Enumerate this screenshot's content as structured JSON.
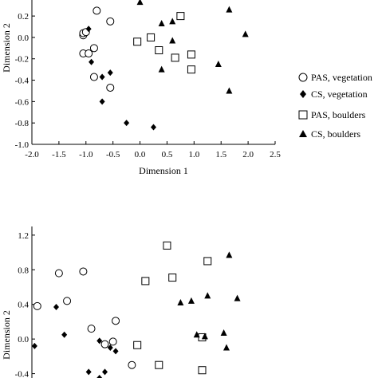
{
  "chart_data": [
    {
      "type": "scatter",
      "xlabel": "Dimension 1",
      "ylabel": "Dimension 2",
      "xlim": [
        -2.0,
        2.5
      ],
      "ylim": [
        -1.0,
        0.35
      ],
      "xticks": [
        "-2.0",
        "-1.5",
        "-1.0",
        "-0.5",
        "0.0",
        "0.5",
        "1.0",
        "1.5",
        "2.0",
        "2.5"
      ],
      "yticks": [
        "-1.0",
        "-0.8",
        "-0.6",
        "-0.4",
        "-0.2",
        "0.0",
        "0.2"
      ],
      "ytick_values": [
        -1.0,
        -0.8,
        -0.6,
        -0.4,
        -0.2,
        0.0,
        0.2
      ],
      "grid": false,
      "legend_position": "right",
      "series": [
        {
          "name": "PAS, vegetation",
          "marker": "open-circle",
          "points": [
            [
              -0.8,
              0.25
            ],
            [
              -0.55,
              0.15
            ],
            [
              -1.05,
              0.02
            ],
            [
              -1.05,
              0.04
            ],
            [
              -1.0,
              0.05
            ],
            [
              -0.85,
              -0.1
            ],
            [
              -1.05,
              -0.15
            ],
            [
              -0.95,
              -0.15
            ],
            [
              -0.85,
              -0.37
            ],
            [
              -0.55,
              -0.47
            ]
          ]
        },
        {
          "name": "CS, vegetation",
          "marker": "filled-diamond",
          "points": [
            [
              -0.95,
              0.08
            ],
            [
              -0.9,
              -0.23
            ],
            [
              -0.55,
              -0.33
            ],
            [
              -0.7,
              -0.37
            ],
            [
              -0.7,
              -0.6
            ],
            [
              -0.25,
              -0.8
            ],
            [
              0.25,
              -0.84
            ]
          ]
        },
        {
          "name": "PAS, boulders",
          "marker": "open-square",
          "points": [
            [
              0.75,
              0.2
            ],
            [
              -0.05,
              -0.04
            ],
            [
              0.2,
              0.0
            ],
            [
              0.35,
              -0.12
            ],
            [
              0.65,
              -0.19
            ],
            [
              0.95,
              -0.16
            ],
            [
              0.95,
              -0.3
            ]
          ]
        },
        {
          "name": "CS, boulders",
          "marker": "filled-triangle",
          "points": [
            [
              0.0,
              0.33
            ],
            [
              1.65,
              0.26
            ],
            [
              0.4,
              0.13
            ],
            [
              0.6,
              0.15
            ],
            [
              0.6,
              -0.03
            ],
            [
              1.95,
              0.03
            ],
            [
              1.45,
              -0.25
            ],
            [
              0.4,
              -0.3
            ],
            [
              1.65,
              -0.5
            ]
          ]
        }
      ]
    },
    {
      "type": "scatter",
      "xlabel": "",
      "ylabel": "Dimension 2",
      "xlim": [
        -2.0,
        2.5
      ],
      "ylim": [
        -0.45,
        1.3
      ],
      "xticks": [],
      "yticks": [
        "-0.4",
        "0.0",
        "0.4",
        "0.8",
        "1.2"
      ],
      "ytick_values": [
        -0.4,
        0.0,
        0.4,
        0.8,
        1.2
      ],
      "grid": false,
      "series": [
        {
          "name": "PAS, vegetation",
          "marker": "open-circle",
          "points": [
            [
              -1.9,
              0.38
            ],
            [
              -1.5,
              0.76
            ],
            [
              -1.05,
              0.78
            ],
            [
              -1.35,
              0.44
            ],
            [
              -0.9,
              0.12
            ],
            [
              -0.45,
              0.21
            ],
            [
              -0.65,
              -0.06
            ],
            [
              -0.5,
              -0.03
            ],
            [
              -0.15,
              -0.3
            ]
          ]
        },
        {
          "name": "CS, vegetation",
          "marker": "filled-diamond",
          "points": [
            [
              -1.55,
              0.37
            ],
            [
              -1.4,
              0.05
            ],
            [
              -1.95,
              -0.08
            ],
            [
              -0.75,
              -0.02
            ],
            [
              -0.55,
              -0.1
            ],
            [
              -0.45,
              -0.14
            ],
            [
              -0.95,
              -0.38
            ],
            [
              -0.65,
              -0.38
            ],
            [
              -0.75,
              -0.45
            ]
          ]
        },
        {
          "name": "PAS, boulders",
          "marker": "open-square",
          "points": [
            [
              0.5,
              1.08
            ],
            [
              0.1,
              0.67
            ],
            [
              0.6,
              0.71
            ],
            [
              1.25,
              0.9
            ],
            [
              -0.05,
              -0.07
            ],
            [
              1.15,
              0.02
            ],
            [
              0.35,
              -0.3
            ],
            [
              1.15,
              -0.36
            ]
          ]
        },
        {
          "name": "CS, boulders",
          "marker": "filled-triangle",
          "points": [
            [
              1.65,
              0.97
            ],
            [
              1.8,
              0.47
            ],
            [
              1.25,
              0.5
            ],
            [
              0.75,
              0.42
            ],
            [
              0.95,
              0.44
            ],
            [
              1.55,
              0.07
            ],
            [
              1.05,
              0.05
            ],
            [
              1.2,
              0.03
            ],
            [
              1.6,
              -0.1
            ]
          ]
        }
      ]
    }
  ]
}
